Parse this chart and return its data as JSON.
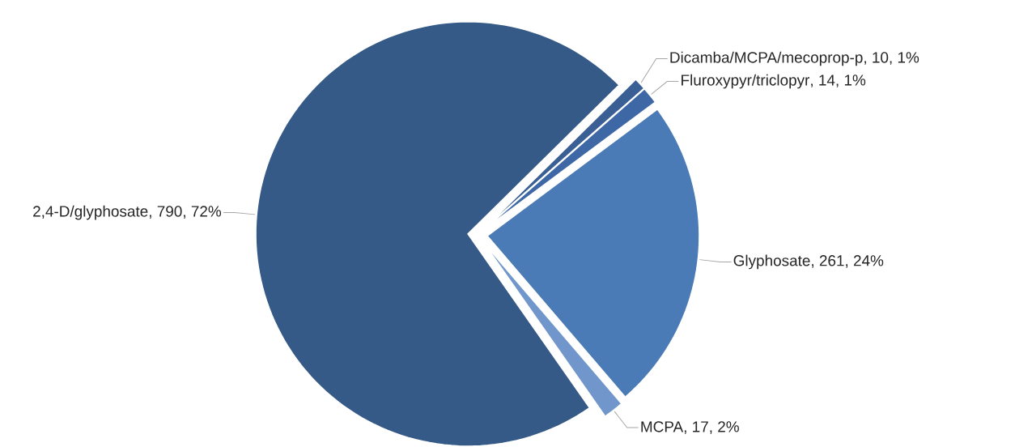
{
  "chart_data": {
    "type": "pie",
    "categories": [
      "2,4-D/glyphosate",
      "Dicamba/MCPA/mecoprop-p",
      "Fluroxypyr/triclopyr",
      "Glyphosate",
      "MCPA"
    ],
    "values": [
      790,
      10,
      14,
      261,
      17
    ],
    "value_labels": [
      ", 790, 72%",
      ", 10, 1%",
      ", 14, 1%",
      ", 261, 24%",
      ", 17, 2%"
    ],
    "colors": [
      "#365a87",
      "#3a5f95",
      "#3e68a5",
      "#4a7bb6",
      "#7096cb"
    ]
  }
}
